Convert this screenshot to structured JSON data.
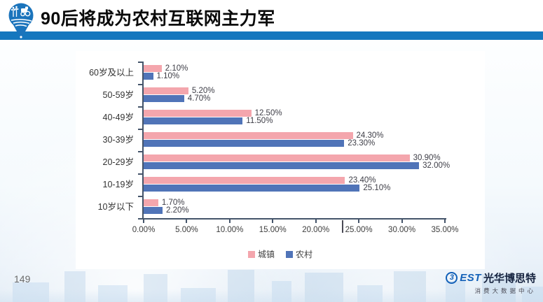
{
  "header": {
    "title": "90后将成为农村互联网主力军"
  },
  "footer": {
    "page_number": "149",
    "brand": {
      "symbol": "3",
      "name_en": "EST",
      "name_cn": "光华博思特",
      "subtitle": "消费大数据中心"
    }
  },
  "colors": {
    "header_bar_blue": "#1577BE",
    "urban_pink": "#F4A6AD",
    "rural_blue": "#5074B8",
    "axis": "#44546A"
  },
  "chart_data": {
    "type": "bar",
    "orientation": "horizontal",
    "title": "",
    "xlabel": "",
    "ylabel": "",
    "xlim": [
      0,
      35
    ],
    "grid": false,
    "legend_position": "bottom",
    "data_labels": true,
    "categories": [
      "60岁及以上",
      "50-59岁",
      "40-49岁",
      "30-39岁",
      "20-29岁",
      "10-19岁",
      "10岁以下"
    ],
    "series": [
      {
        "name": "城镇",
        "color": "#F4A6AD",
        "values": [
          2.1,
          5.2,
          12.5,
          24.3,
          30.9,
          23.4,
          1.7
        ]
      },
      {
        "name": "农村",
        "color": "#5074B8",
        "values": [
          1.1,
          4.7,
          11.5,
          23.3,
          32.0,
          25.1,
          2.2
        ]
      }
    ],
    "x_ticks": [
      "0.00%",
      "5.00%",
      "10.00%",
      "15.00%",
      "20.00%",
      "25.00%",
      "30.00%",
      "35.00%"
    ]
  }
}
